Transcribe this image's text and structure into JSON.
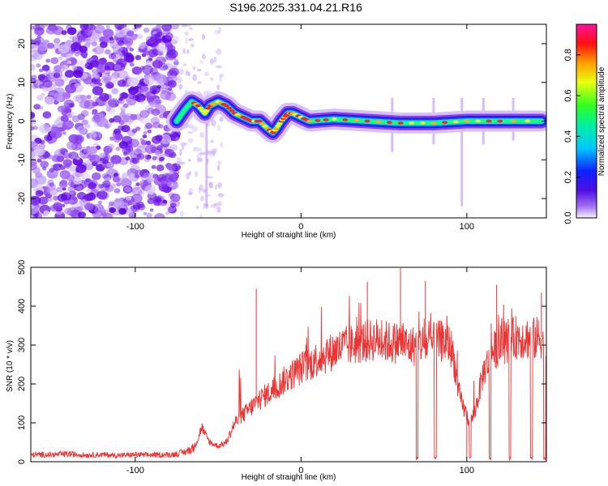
{
  "title": "S196.2025.331.04.21.R16",
  "chart_data": [
    {
      "type": "heatmap",
      "xlabel": "Height of straight line (km)",
      "ylabel": "Frequency (Hz)",
      "xlim": [
        -163,
        148
      ],
      "ylim": [
        -25,
        25
      ],
      "x_ticks": [
        "-100",
        "0",
        "100"
      ],
      "x_tick_values": [
        -100,
        0,
        100
      ],
      "y_ticks": [
        "-20",
        "-10",
        "0",
        "10",
        "20"
      ],
      "y_tick_values": [
        -20,
        -10,
        0,
        10,
        20
      ],
      "colorbar": {
        "label": "Normalized spectral amplitude",
        "ticks": [
          "0.0",
          "0.2",
          "0.4",
          "0.6",
          "0.8"
        ],
        "tick_values": [
          0.0,
          0.2,
          0.4,
          0.6,
          0.8
        ],
        "range": [
          0,
          0.95
        ]
      },
      "ridge": {
        "x": [
          -75,
          -70,
          -66,
          -62,
          -58,
          -55,
          -50,
          -45,
          -40,
          -35,
          -30,
          -25,
          -20,
          -17,
          -15,
          -12,
          -10,
          -8,
          -5,
          0,
          5,
          20,
          40,
          60,
          80,
          100,
          120,
          145
        ],
        "frequency": [
          0,
          3,
          5,
          4,
          2,
          4,
          5,
          4,
          2,
          1,
          0,
          0,
          -2,
          -3,
          -2,
          0,
          1,
          2,
          2,
          1,
          0,
          0.5,
          0,
          -0.5,
          -0.5,
          0,
          0,
          0
        ]
      }
    },
    {
      "type": "line",
      "xlabel": "Height of straight line (km)",
      "ylabel": "SNR (10 * v/v)",
      "xlim": [
        -163,
        148
      ],
      "ylim": [
        0,
        500
      ],
      "x_ticks": [
        "-100",
        "0",
        "100"
      ],
      "x_tick_values": [
        -100,
        0,
        100
      ],
      "y_ticks": [
        "0",
        "100",
        "200",
        "300",
        "400",
        "500"
      ],
      "y_tick_values": [
        0,
        100,
        200,
        300,
        400,
        500
      ],
      "color": "#ee3333",
      "series": [
        {
          "name": "SNR",
          "x": [
            -163,
            -150,
            -140,
            -130,
            -120,
            -110,
            -100,
            -90,
            -80,
            -75,
            -70,
            -65,
            -62,
            -60,
            -58,
            -55,
            -50,
            -45,
            -40,
            -35,
            -30,
            -25,
            -20,
            -15,
            -10,
            -5,
            0,
            5,
            10,
            15,
            20,
            25,
            30,
            35,
            40,
            45,
            50,
            55,
            60,
            62,
            63,
            65,
            70,
            72,
            75,
            80,
            85,
            90,
            92,
            95,
            97,
            100,
            102,
            105,
            110,
            115,
            120,
            125,
            130,
            135,
            140,
            145,
            148
          ],
          "values": [
            18,
            18,
            20,
            17,
            18,
            16,
            18,
            17,
            18,
            20,
            25,
            35,
            60,
            90,
            70,
            50,
            40,
            50,
            100,
            120,
            140,
            160,
            175,
            190,
            210,
            225,
            240,
            250,
            265,
            275,
            285,
            295,
            300,
            305,
            310,
            315,
            310,
            305,
            310,
            305,
            300,
            295,
            300,
            305,
            300,
            305,
            310,
            300,
            270,
            180,
            150,
            120,
            100,
            130,
            230,
            280,
            300,
            310,
            320,
            320,
            315,
            320,
            300
          ]
        }
      ],
      "spikes": [
        {
          "x": -27,
          "y": 445
        },
        {
          "x": 60,
          "y": 498
        },
        {
          "x": 75,
          "y": 465
        },
        {
          "x": 118,
          "y": 455
        },
        {
          "x": 145,
          "y": 435
        },
        {
          "x": 40,
          "y": 463
        },
        {
          "x": 100,
          "y": 10
        }
      ]
    }
  ]
}
